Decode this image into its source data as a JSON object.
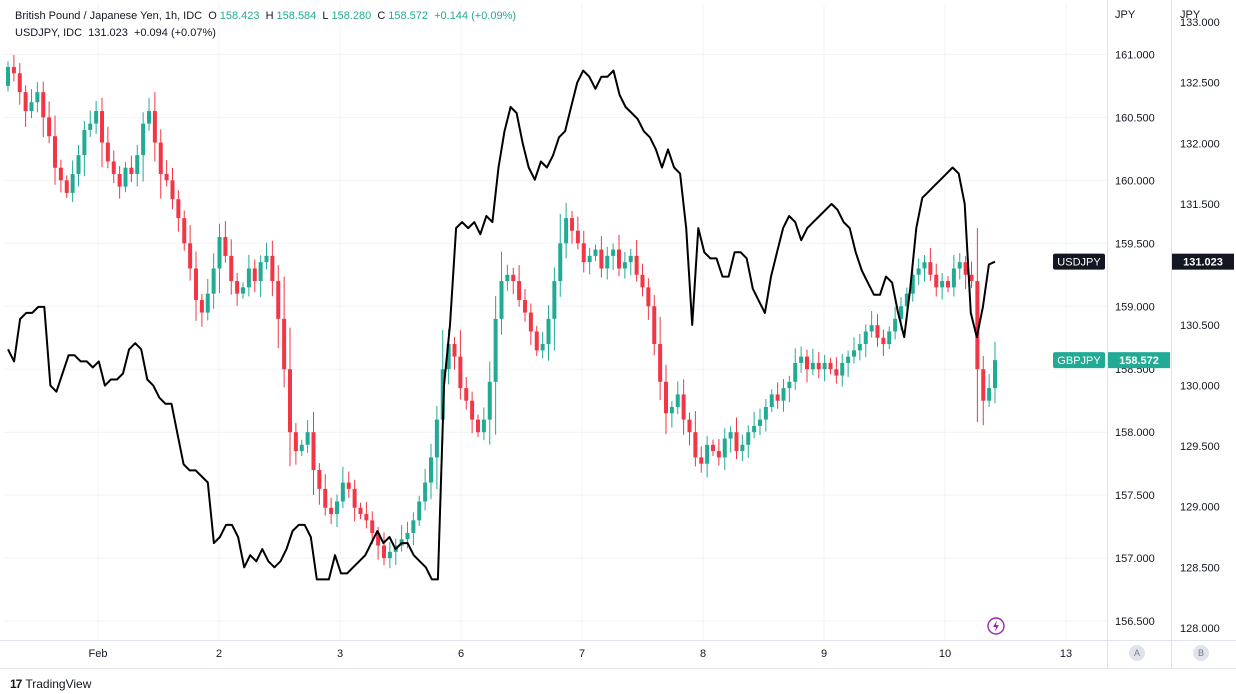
{
  "legend": {
    "symbol_title": "British Pound / Japanese Yen, 1h, IDC",
    "o_label": "O",
    "o_value": "158.423",
    "h_label": "H",
    "h_value": "158.584",
    "l_label": "L",
    "l_value": "158.280",
    "c_label": "C",
    "c_value": "158.572",
    "change": "+0.144 (+0.09%)",
    "overlay_title": "USDJPY, IDC",
    "overlay_value": "131.023",
    "overlay_change": "+0.094 (+0.07%)"
  },
  "scales": {
    "a_title": "JPY",
    "b_title": "JPY",
    "a_button": "A",
    "b_button": "B"
  },
  "brand": {
    "name": "TradingView",
    "logo_glyph": "17"
  },
  "colors": {
    "up": "#22ab94",
    "down": "#f23645",
    "line": "#000000",
    "grid": "#f0f3fa",
    "axis_text": "#131722"
  },
  "chart_data": {
    "type": "line",
    "x_ticks": [
      "Feb",
      "2",
      "3",
      "6",
      "7",
      "8",
      "9",
      "10",
      "13"
    ],
    "axis_a": {
      "label": "JPY",
      "ticks": [
        "161.000",
        "160.500",
        "160.000",
        "159.500",
        "159.000",
        "158.500",
        "158.000",
        "157.500",
        "157.000",
        "156.500"
      ],
      "ylim": [
        156.35,
        161.4
      ]
    },
    "axis_b": {
      "label": "JPY",
      "ticks": [
        "133.000",
        "132.500",
        "132.000",
        "131.500",
        "131.000",
        "130.500",
        "130.000",
        "129.500",
        "129.000",
        "128.500",
        "128.000"
      ],
      "ylim": [
        127.9,
        133.15
      ]
    },
    "badges": [
      {
        "name": "USDJPY",
        "value": "131.023",
        "scale": "b",
        "bg": "#131722"
      },
      {
        "name": "GBPJPY",
        "value": "158.572",
        "scale": "a",
        "bg": "#22ab94"
      }
    ],
    "series": [
      {
        "name": "GBPJPY",
        "style": "candles",
        "axis": "a",
        "close": [
          160.9,
          160.85,
          160.7,
          160.55,
          160.62,
          160.7,
          160.5,
          160.35,
          160.1,
          160.0,
          159.9,
          160.05,
          160.2,
          160.4,
          160.45,
          160.55,
          160.3,
          160.15,
          160.05,
          159.95,
          160.1,
          160.05,
          160.2,
          160.45,
          160.55,
          160.3,
          160.05,
          160.0,
          159.85,
          159.7,
          159.5,
          159.3,
          159.05,
          158.95,
          159.1,
          159.3,
          159.55,
          159.4,
          159.2,
          159.1,
          159.15,
          159.3,
          159.2,
          159.35,
          159.4,
          159.2,
          158.9,
          158.5,
          158.0,
          157.85,
          157.9,
          158.0,
          157.7,
          157.55,
          157.4,
          157.35,
          157.45,
          157.6,
          157.55,
          157.4,
          157.35,
          157.3,
          157.2,
          157.1,
          157.0,
          157.05,
          157.1,
          157.15,
          157.2,
          157.3,
          157.45,
          157.6,
          157.8,
          158.1,
          158.5,
          158.7,
          158.6,
          158.35,
          158.25,
          158.1,
          158.0,
          158.1,
          158.4,
          158.9,
          159.2,
          159.25,
          159.2,
          159.05,
          158.95,
          158.8,
          158.65,
          158.7,
          158.9,
          159.2,
          159.5,
          159.7,
          159.6,
          159.5,
          159.35,
          159.4,
          159.45,
          159.3,
          159.4,
          159.45,
          159.3,
          159.35,
          159.4,
          159.25,
          159.15,
          159.0,
          158.7,
          158.4,
          158.15,
          158.2,
          158.3,
          158.1,
          158.0,
          157.8,
          157.75,
          157.9,
          157.85,
          157.8,
          157.95,
          158.0,
          157.85,
          157.9,
          158.0,
          158.05,
          158.1,
          158.2,
          158.3,
          158.25,
          158.35,
          158.4,
          158.55,
          158.6,
          158.5,
          158.55,
          158.5,
          158.55,
          158.5,
          158.45,
          158.55,
          158.6,
          158.65,
          158.7,
          158.8,
          158.85,
          158.75,
          158.7,
          158.8,
          158.9,
          159.0,
          159.1,
          159.25,
          159.3,
          159.35,
          159.25,
          159.15,
          159.2,
          159.15,
          159.3,
          159.35,
          159.25,
          159.2,
          158.5,
          158.25,
          158.35,
          158.572
        ],
        "open_first": 160.75
      },
      {
        "name": "USDJPY",
        "style": "line",
        "axis": "b",
        "values": [
          130.3,
          130.2,
          130.55,
          130.6,
          130.6,
          130.65,
          130.65,
          130.0,
          129.95,
          130.1,
          130.25,
          130.25,
          130.2,
          130.2,
          130.15,
          130.2,
          130.0,
          130.05,
          130.05,
          130.1,
          130.3,
          130.35,
          130.3,
          130.05,
          130.0,
          129.9,
          129.85,
          129.85,
          129.6,
          129.35,
          129.3,
          129.3,
          129.25,
          129.2,
          128.7,
          128.75,
          128.85,
          128.85,
          128.75,
          128.5,
          128.6,
          128.55,
          128.65,
          128.55,
          128.5,
          128.55,
          128.65,
          128.8,
          128.85,
          128.85,
          128.75,
          128.4,
          128.4,
          128.4,
          128.6,
          128.45,
          128.45,
          128.5,
          128.55,
          128.6,
          128.7,
          128.8,
          128.7,
          128.75,
          128.65,
          128.7,
          128.7,
          128.6,
          128.55,
          128.5,
          128.4,
          128.4,
          130.0,
          130.5,
          131.3,
          131.35,
          131.3,
          131.35,
          131.25,
          131.4,
          131.35,
          131.8,
          132.1,
          132.3,
          132.25,
          132.0,
          131.8,
          131.7,
          131.85,
          131.8,
          131.9,
          132.05,
          132.1,
          132.3,
          132.5,
          132.6,
          132.55,
          132.45,
          132.55,
          132.55,
          132.6,
          132.4,
          132.3,
          132.25,
          132.2,
          132.1,
          132.05,
          131.95,
          131.8,
          131.95,
          131.8,
          131.75,
          131.3,
          130.5,
          131.3,
          131.1,
          131.05,
          131.05,
          130.9,
          130.9,
          131.1,
          131.1,
          131.05,
          130.8,
          130.7,
          130.6,
          130.9,
          131.1,
          131.3,
          131.4,
          131.35,
          131.2,
          131.3,
          131.35,
          131.4,
          131.45,
          131.5,
          131.45,
          131.35,
          131.3,
          131.1,
          130.95,
          130.85,
          130.75,
          130.75,
          130.9,
          130.85,
          130.6,
          130.4,
          130.8,
          131.3,
          131.55,
          131.6,
          131.65,
          131.7,
          131.75,
          131.8,
          131.75,
          131.5,
          130.6,
          130.4,
          130.65,
          131.0,
          131.023
        ]
      }
    ]
  }
}
